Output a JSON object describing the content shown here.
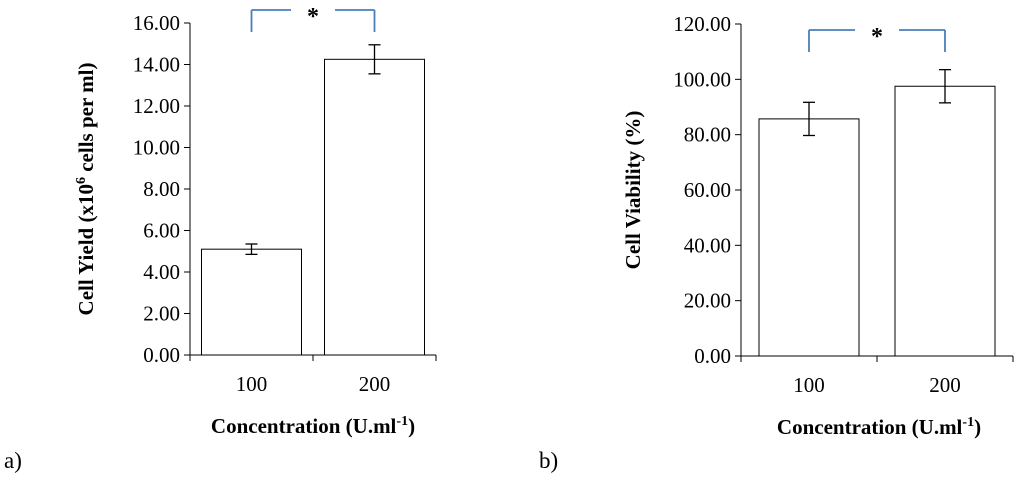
{
  "chart_data": [
    {
      "type": "bar",
      "panel_label": "a)",
      "categories": [
        "100",
        "200"
      ],
      "values": [
        5.1,
        14.25
      ],
      "errors": [
        0.25,
        0.7
      ],
      "ylim": [
        0,
        16
      ],
      "yticks": [
        "0.00",
        "2.00",
        "4.00",
        "6.00",
        "8.00",
        "10.00",
        "12.00",
        "14.00",
        "16.00"
      ],
      "ylabel": {
        "before": "Cell Yield (x10",
        "sup": "6",
        "after": " cells per ml)"
      },
      "xlabel": {
        "before": "Concentration (U.ml",
        "sup": "-1",
        "after": ")"
      },
      "significance_marker": "*",
      "significance_color": "#4a7ebb",
      "bar_fill": "#ffffff",
      "bar_stroke": "#000000",
      "grid": false
    },
    {
      "type": "bar",
      "panel_label": "b)",
      "categories": [
        "100",
        "200"
      ],
      "values": [
        85.7,
        97.5
      ],
      "errors": [
        6.0,
        6.0
      ],
      "ylim": [
        0,
        120
      ],
      "yticks": [
        "0.00",
        "20.00",
        "40.00",
        "60.00",
        "80.00",
        "100.00",
        "120.00"
      ],
      "ylabel": {
        "before": "Cell Viability (%)",
        "sup": "",
        "after": ""
      },
      "xlabel": {
        "before": "Concentration (U.ml",
        "sup": "-1",
        "after": ")"
      },
      "significance_marker": "*",
      "significance_color": "#4a7ebb",
      "bar_fill": "#ffffff",
      "bar_stroke": "#000000",
      "grid": false
    }
  ]
}
